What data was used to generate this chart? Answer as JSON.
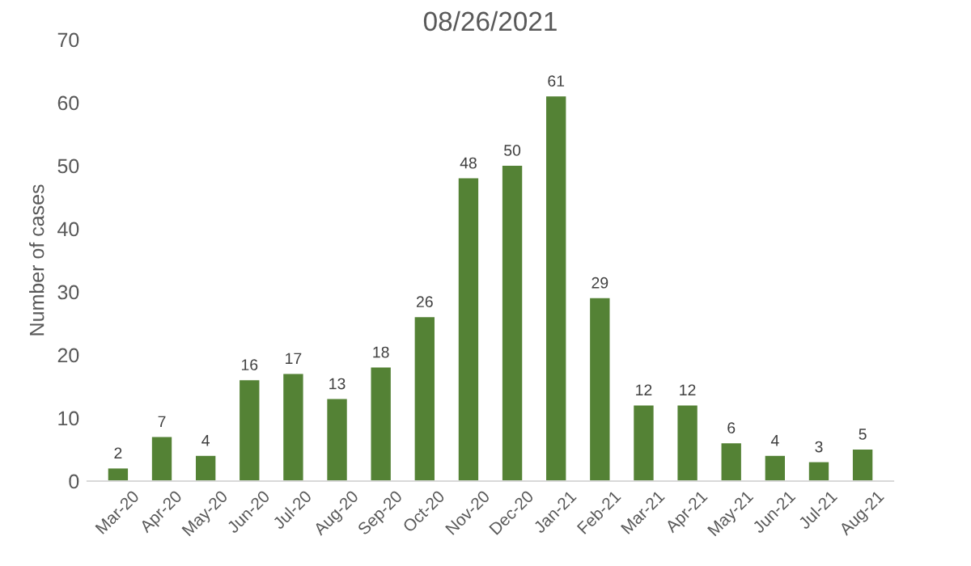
{
  "chart_data": {
    "type": "bar",
    "title": "08/26/2021",
    "ylabel": "Number of cases",
    "categories": [
      "Mar-20",
      "Apr-20",
      "May-20",
      "Jun-20",
      "Jul-20",
      "Aug-20",
      "Sep-20",
      "Oct-20",
      "Nov-20",
      "Dec-20",
      "Jan-21",
      "Feb-21",
      "Mar-21",
      "Apr-21",
      "May-21",
      "Jun-21",
      "Jul-21",
      "Aug-21"
    ],
    "values": [
      2,
      7,
      4,
      16,
      17,
      13,
      18,
      26,
      48,
      50,
      61,
      29,
      12,
      12,
      6,
      4,
      3,
      5
    ],
    "color": "#548235",
    "ylim": [
      0,
      70
    ],
    "yticks": [
      0,
      10,
      20,
      30,
      40,
      50,
      60,
      70
    ],
    "data_labels": true,
    "grid": false,
    "legend": false
  }
}
